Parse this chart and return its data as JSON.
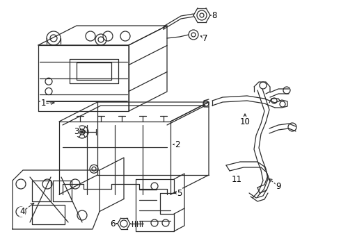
{
  "background_color": "#ffffff",
  "line_color": "#2a2a2a",
  "figsize": [
    4.9,
    3.6
  ],
  "dpi": 100,
  "font_size": 8.5,
  "lw": 0.9
}
